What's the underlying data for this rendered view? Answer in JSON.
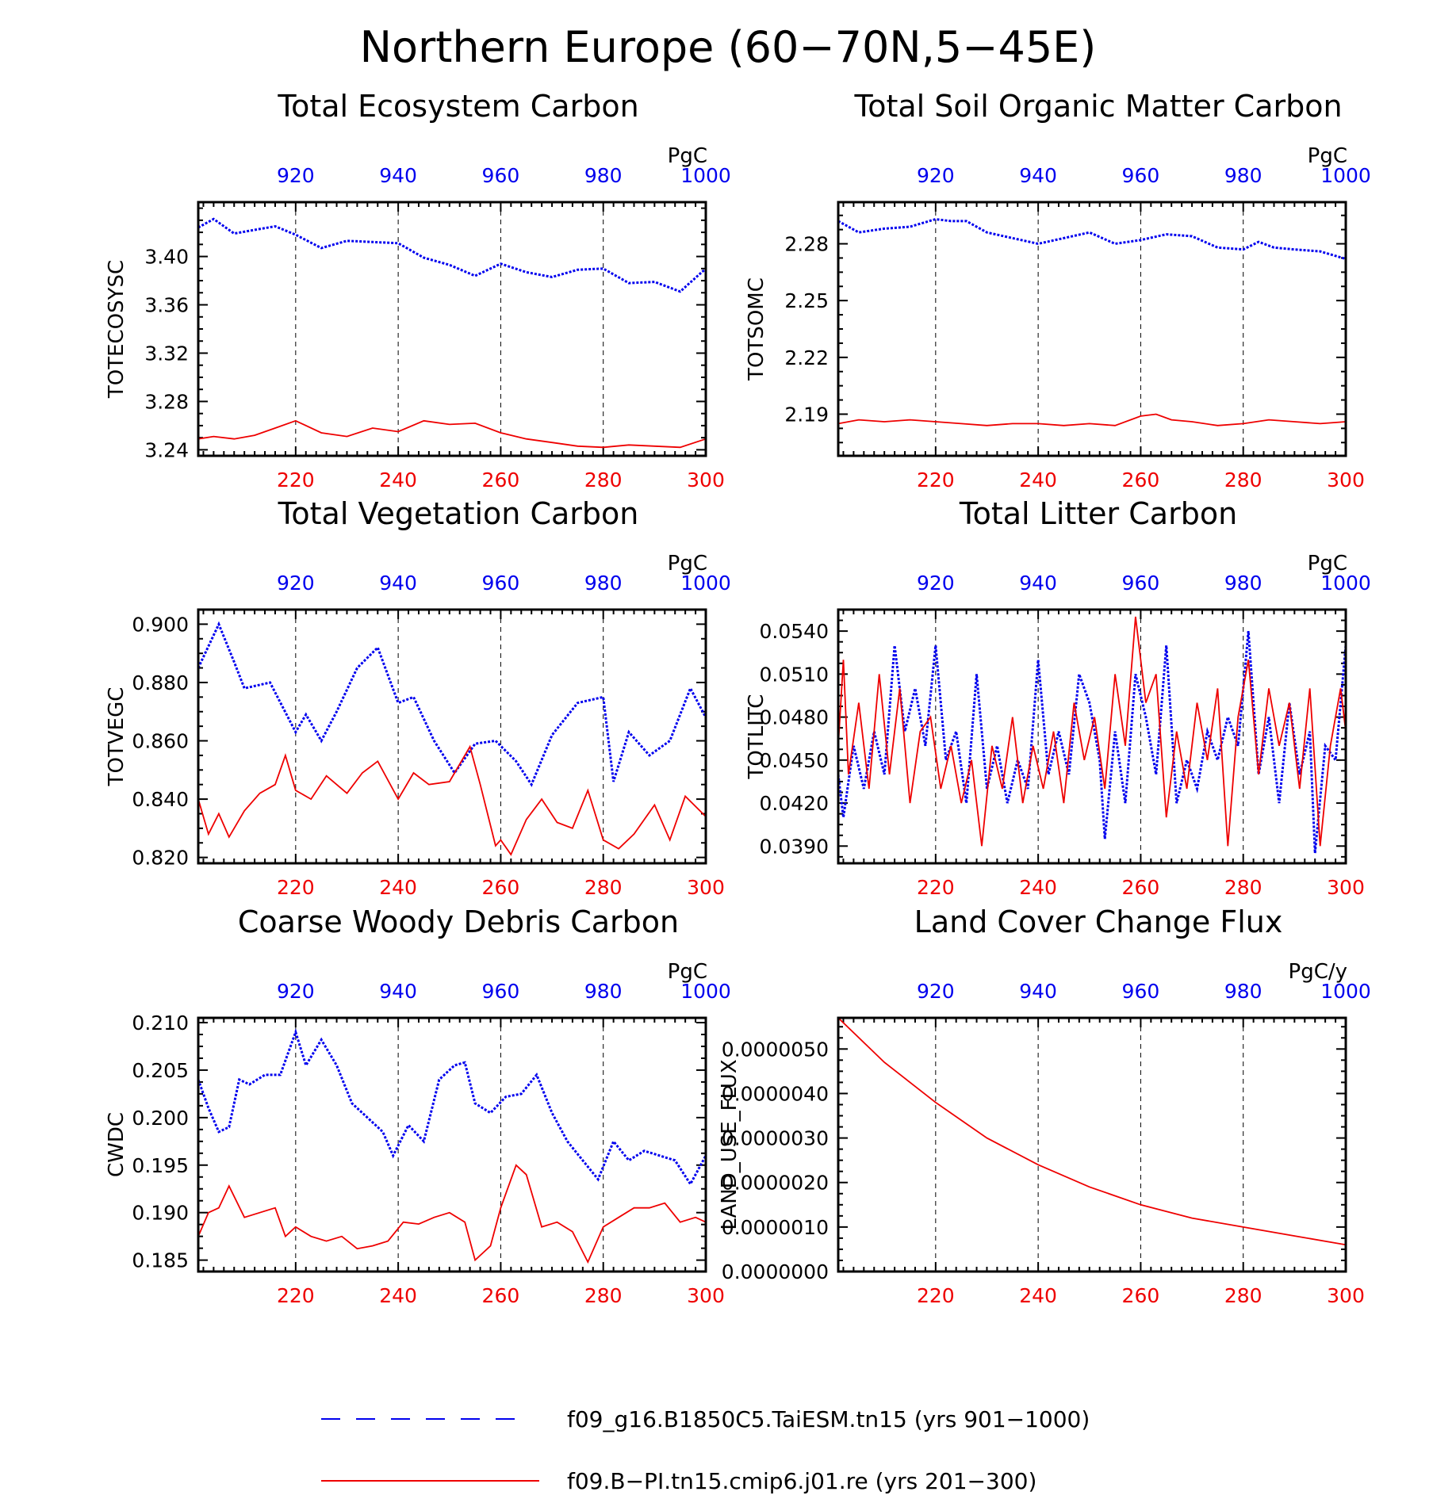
{
  "figure": {
    "title": "Northern Europe (60−70N,5−45E)",
    "top_axis_ticks": [
      "920",
      "940",
      "960",
      "980",
      "1000"
    ],
    "bottom_axis_ticks": [
      "220",
      "240",
      "260",
      "280",
      "300"
    ],
    "colors": {
      "blue_series": "#0000ee",
      "red_series": "#ee0000",
      "axis": "#000000"
    }
  },
  "legend": {
    "items": [
      {
        "label": "f09_g16.B1850C5.TaiESM.tn15 (yrs 901−1000)",
        "style": "dashed",
        "color": "#0000ee"
      },
      {
        "label": "f09.B−PI.tn15.cmip6.j01.re (yrs 201−300)",
        "style": "solid",
        "color": "#ee0000"
      }
    ]
  },
  "chart_data": [
    {
      "type": "line",
      "title": "Total Ecosystem Carbon",
      "ylabel": "TOTECOSYSC",
      "units": "PgC",
      "ylim": [
        3.235,
        3.445
      ],
      "yticks": [
        "3.24",
        "3.28",
        "3.32",
        "3.36",
        "3.40"
      ],
      "x_bottom": {
        "label": "yrs 201-300",
        "range": [
          201,
          300
        ]
      },
      "x_top": {
        "label": "yrs 901-1000",
        "range": [
          901,
          1000
        ]
      },
      "grid": "vertical dashed at 220/920, 240/940, 260/960, 280/980",
      "series": [
        {
          "style": "dashed",
          "color": "#0000ee",
          "axis": "top",
          "x": [
            901,
            904,
            908,
            912,
            916,
            920,
            925,
            930,
            935,
            940,
            945,
            950,
            955,
            960,
            965,
            970,
            975,
            980,
            985,
            990,
            995,
            1000
          ],
          "y": [
            3.424,
            3.431,
            3.419,
            3.422,
            3.425,
            3.418,
            3.407,
            3.413,
            3.412,
            3.411,
            3.399,
            3.393,
            3.384,
            3.394,
            3.387,
            3.383,
            3.389,
            3.39,
            3.378,
            3.379,
            3.371,
            3.39
          ]
        },
        {
          "style": "solid",
          "color": "#ee0000",
          "axis": "bottom",
          "x": [
            201,
            204,
            208,
            212,
            216,
            220,
            225,
            230,
            235,
            240,
            245,
            250,
            255,
            260,
            265,
            270,
            275,
            280,
            285,
            290,
            295,
            300
          ],
          "y": [
            3.249,
            3.251,
            3.249,
            3.252,
            3.258,
            3.264,
            3.254,
            3.251,
            3.258,
            3.255,
            3.264,
            3.261,
            3.262,
            3.254,
            3.249,
            3.246,
            3.243,
            3.242,
            3.244,
            3.243,
            3.242,
            3.249
          ]
        }
      ]
    },
    {
      "type": "line",
      "title": "Total Soil Organic Matter Carbon",
      "ylabel": "TOTSOMC",
      "units": "PgC",
      "ylim": [
        2.168,
        2.302
      ],
      "yticks": [
        "2.19",
        "2.22",
        "2.25",
        "2.28"
      ],
      "x_bottom": {
        "label": "yrs 201-300",
        "range": [
          201,
          300
        ]
      },
      "x_top": {
        "label": "yrs 901-1000",
        "range": [
          901,
          1000
        ]
      },
      "grid": "vertical dashed at 220/920, 240/940, 260/960, 280/980",
      "series": [
        {
          "style": "dashed",
          "color": "#0000ee",
          "axis": "top",
          "x": [
            901,
            905,
            910,
            915,
            920,
            923,
            926,
            930,
            935,
            940,
            945,
            950,
            955,
            960,
            965,
            970,
            975,
            980,
            983,
            986,
            990,
            995,
            1000
          ],
          "y": [
            2.292,
            2.286,
            2.288,
            2.289,
            2.293,
            2.292,
            2.292,
            2.286,
            2.283,
            2.28,
            2.283,
            2.286,
            2.28,
            2.282,
            2.285,
            2.284,
            2.278,
            2.277,
            2.281,
            2.278,
            2.277,
            2.276,
            2.272
          ]
        },
        {
          "style": "solid",
          "color": "#ee0000",
          "axis": "bottom",
          "x": [
            201,
            205,
            210,
            215,
            220,
            225,
            230,
            235,
            240,
            245,
            250,
            255,
            260,
            263,
            266,
            270,
            275,
            280,
            285,
            290,
            295,
            300
          ],
          "y": [
            2.185,
            2.187,
            2.186,
            2.187,
            2.186,
            2.185,
            2.184,
            2.185,
            2.185,
            2.184,
            2.185,
            2.184,
            2.189,
            2.19,
            2.187,
            2.186,
            2.184,
            2.185,
            2.187,
            2.186,
            2.185,
            2.186
          ]
        }
      ]
    },
    {
      "type": "line",
      "title": "Total Vegetation Carbon",
      "ylabel": "TOTVEGC",
      "units": "PgC",
      "ylim": [
        0.818,
        0.905
      ],
      "yticks": [
        "0.820",
        "0.840",
        "0.860",
        "0.880",
        "0.900"
      ],
      "x_bottom": {
        "label": "yrs 201-300",
        "range": [
          201,
          300
        ]
      },
      "x_top": {
        "label": "yrs 901-1000",
        "range": [
          901,
          1000
        ]
      },
      "grid": "vertical dashed at 220/920, 240/940, 260/960, 280/980",
      "series": [
        {
          "style": "dashed",
          "color": "#0000ee",
          "axis": "top",
          "x": [
            901,
            905,
            908,
            910,
            915,
            920,
            922,
            925,
            928,
            932,
            936,
            940,
            943,
            947,
            951,
            955,
            959,
            963,
            966,
            970,
            975,
            980,
            982,
            985,
            989,
            993,
            997,
            1000
          ],
          "y": [
            0.885,
            0.9,
            0.887,
            0.878,
            0.88,
            0.863,
            0.869,
            0.86,
            0.87,
            0.885,
            0.892,
            0.873,
            0.875,
            0.86,
            0.849,
            0.859,
            0.86,
            0.853,
            0.845,
            0.862,
            0.873,
            0.875,
            0.846,
            0.863,
            0.855,
            0.86,
            0.878,
            0.868
          ]
        },
        {
          "style": "solid",
          "color": "#ee0000",
          "axis": "bottom",
          "x": [
            201,
            203,
            205,
            207,
            210,
            213,
            216,
            218,
            220,
            223,
            226,
            230,
            233,
            236,
            240,
            243,
            246,
            250,
            254,
            256,
            259,
            260,
            262,
            265,
            268,
            271,
            274,
            277,
            280,
            283,
            286,
            290,
            293,
            296,
            300
          ],
          "y": [
            0.84,
            0.828,
            0.835,
            0.827,
            0.836,
            0.842,
            0.845,
            0.855,
            0.843,
            0.84,
            0.848,
            0.842,
            0.849,
            0.853,
            0.84,
            0.849,
            0.845,
            0.846,
            0.858,
            0.845,
            0.824,
            0.826,
            0.821,
            0.833,
            0.84,
            0.832,
            0.83,
            0.843,
            0.826,
            0.823,
            0.828,
            0.838,
            0.826,
            0.841,
            0.834
          ]
        }
      ]
    },
    {
      "type": "line",
      "title": "Total Litter Carbon",
      "ylabel": "TOTLITC",
      "units": "PgC",
      "ylim": [
        0.0378,
        0.0555
      ],
      "yticks": [
        "0.0390",
        "0.0420",
        "0.0450",
        "0.0480",
        "0.0510",
        "0.0540"
      ],
      "x_bottom": {
        "label": "yrs 201-300",
        "range": [
          201,
          300
        ]
      },
      "x_top": {
        "label": "yrs 901-1000",
        "range": [
          901,
          1000
        ]
      },
      "grid": "vertical dashed at 220/920, 240/940, 260/960, 280/980",
      "series": [
        {
          "style": "dashed",
          "color": "#0000ee",
          "axis": "top",
          "x": [
            901,
            902,
            904,
            906,
            908,
            910,
            912,
            914,
            916,
            918,
            920,
            922,
            924,
            926,
            928,
            930,
            932,
            934,
            936,
            938,
            940,
            942,
            944,
            946,
            948,
            950,
            952,
            953,
            955,
            957,
            959,
            961,
            963,
            965,
            967,
            969,
            971,
            973,
            975,
            977,
            979,
            981,
            983,
            985,
            987,
            989,
            991,
            993,
            994,
            996,
            998,
            1000
          ],
          "y": [
            0.044,
            0.041,
            0.046,
            0.043,
            0.047,
            0.044,
            0.053,
            0.047,
            0.05,
            0.046,
            0.053,
            0.045,
            0.047,
            0.042,
            0.051,
            0.043,
            0.046,
            0.042,
            0.045,
            0.043,
            0.052,
            0.044,
            0.047,
            0.044,
            0.051,
            0.049,
            0.045,
            0.0395,
            0.047,
            0.042,
            0.051,
            0.048,
            0.044,
            0.053,
            0.042,
            0.045,
            0.043,
            0.047,
            0.045,
            0.048,
            0.046,
            0.054,
            0.044,
            0.048,
            0.042,
            0.049,
            0.044,
            0.047,
            0.0385,
            0.046,
            0.045,
            0.053
          ]
        },
        {
          "style": "solid",
          "color": "#ee0000",
          "axis": "bottom",
          "x": [
            201,
            202,
            203,
            205,
            207,
            209,
            211,
            213,
            215,
            217,
            219,
            221,
            223,
            225,
            227,
            229,
            231,
            233,
            235,
            237,
            239,
            241,
            243,
            245,
            247,
            249,
            251,
            253,
            255,
            257,
            259,
            261,
            263,
            265,
            267,
            269,
            271,
            273,
            275,
            277,
            279,
            281,
            283,
            285,
            287,
            289,
            291,
            293,
            295,
            297,
            299,
            300
          ],
          "y": [
            0.046,
            0.052,
            0.044,
            0.049,
            0.043,
            0.051,
            0.044,
            0.05,
            0.042,
            0.047,
            0.048,
            0.043,
            0.046,
            0.042,
            0.045,
            0.039,
            0.046,
            0.043,
            0.048,
            0.042,
            0.046,
            0.043,
            0.047,
            0.042,
            0.049,
            0.045,
            0.048,
            0.043,
            0.051,
            0.046,
            0.055,
            0.049,
            0.051,
            0.041,
            0.047,
            0.043,
            0.049,
            0.045,
            0.05,
            0.039,
            0.048,
            0.052,
            0.044,
            0.05,
            0.046,
            0.049,
            0.043,
            0.05,
            0.039,
            0.046,
            0.05,
            0.047
          ]
        }
      ]
    },
    {
      "type": "line",
      "title": "Coarse Woody Debris Carbon",
      "ylabel": "CWDC",
      "units": "PgC",
      "ylim": [
        0.1838,
        0.2105
      ],
      "yticks": [
        "0.185",
        "0.190",
        "0.195",
        "0.200",
        "0.205",
        "0.210"
      ],
      "x_bottom": {
        "label": "yrs 201-300",
        "range": [
          201,
          300
        ]
      },
      "x_top": {
        "label": "yrs 901-1000",
        "range": [
          901,
          1000
        ]
      },
      "grid": "vertical dashed at 220/920, 240/940, 260/960, 280/980",
      "series": [
        {
          "style": "dashed",
          "color": "#0000ee",
          "axis": "top",
          "x": [
            901,
            903,
            905,
            907,
            909,
            911,
            914,
            917,
            920,
            922,
            925,
            928,
            931,
            934,
            937,
            939,
            942,
            945,
            948,
            951,
            953,
            955,
            958,
            961,
            964,
            967,
            970,
            973,
            976,
            979,
            982,
            985,
            988,
            991,
            994,
            997,
            1000
          ],
          "y": [
            0.204,
            0.201,
            0.1985,
            0.199,
            0.204,
            0.2035,
            0.2045,
            0.2045,
            0.209,
            0.2055,
            0.2082,
            0.2055,
            0.2015,
            0.2,
            0.1985,
            0.196,
            0.1992,
            0.1975,
            0.204,
            0.2055,
            0.2058,
            0.2015,
            0.2005,
            0.2022,
            0.2025,
            0.2045,
            0.2005,
            0.1975,
            0.1955,
            0.1935,
            0.1975,
            0.1955,
            0.1965,
            0.196,
            0.1955,
            0.193,
            0.196
          ]
        },
        {
          "style": "solid",
          "color": "#ee0000",
          "axis": "bottom",
          "x": [
            201,
            203,
            205,
            207,
            210,
            213,
            216,
            218,
            220,
            223,
            226,
            229,
            232,
            235,
            238,
            241,
            244,
            247,
            250,
            253,
            255,
            258,
            260,
            263,
            265,
            268,
            271,
            274,
            277,
            280,
            283,
            286,
            289,
            292,
            295,
            298,
            300
          ],
          "y": [
            0.1875,
            0.19,
            0.1905,
            0.1928,
            0.1895,
            0.19,
            0.1905,
            0.1875,
            0.1885,
            0.1875,
            0.187,
            0.1875,
            0.1862,
            0.1865,
            0.187,
            0.189,
            0.1888,
            0.1895,
            0.19,
            0.189,
            0.185,
            0.1865,
            0.1905,
            0.195,
            0.194,
            0.1885,
            0.189,
            0.188,
            0.1848,
            0.1885,
            0.1895,
            0.1905,
            0.1905,
            0.191,
            0.189,
            0.1895,
            0.189
          ]
        }
      ]
    },
    {
      "type": "line",
      "title": "Land Cover Change Flux",
      "ylabel": "LAND_USE_FLUX",
      "units": "PgC/y",
      "ylim": [
        0.0,
        5.7e-06
      ],
      "yticks": [
        "0.0000000",
        "0.0000010",
        "0.0000020",
        "0.0000030",
        "0.0000040",
        "0.0000050"
      ],
      "x_bottom": {
        "label": "yrs 201-300",
        "range": [
          201,
          300
        ]
      },
      "x_top": {
        "label": "yrs 901-1000",
        "range": [
          901,
          1000
        ]
      },
      "grid": "vertical dashed at 220/920, 240/940, 260/960, 280/980",
      "series": [
        {
          "style": "solid",
          "color": "#ee0000",
          "axis": "bottom",
          "x": [
            201,
            210,
            220,
            230,
            240,
            250,
            260,
            270,
            280,
            290,
            300
          ],
          "y": [
            5.7e-06,
            4.7e-06,
            3.8e-06,
            3e-06,
            2.4e-06,
            1.9e-06,
            1.5e-06,
            1.2e-06,
            1e-06,
            8e-07,
            6e-07
          ]
        }
      ]
    }
  ]
}
